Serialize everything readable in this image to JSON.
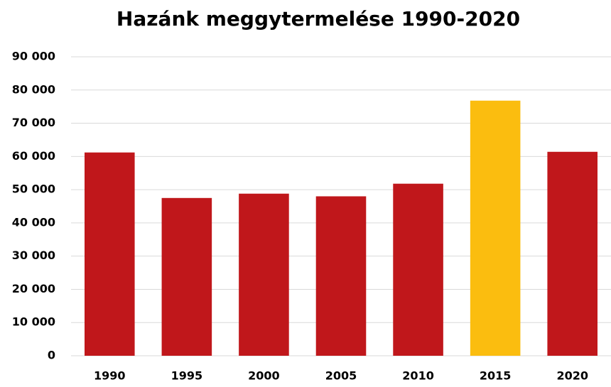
{
  "chart_data": {
    "type": "bar",
    "title": "Hazánk meggytermelése 1990-2020",
    "categories": [
      "1990",
      "1995",
      "2000",
      "2005",
      "2010",
      "2015",
      "2020"
    ],
    "values": [
      61200,
      47500,
      48800,
      48000,
      51800,
      76800,
      61400
    ],
    "colors": [
      "#c0171b",
      "#c0171b",
      "#c0171b",
      "#c0171b",
      "#c0171b",
      "#fbbd0f",
      "#c0171b"
    ],
    "ylim": [
      0,
      90000
    ],
    "yticks": [
      0,
      {
        "value": 10000,
        "label": "10 000"
      },
      {
        "value": 20000,
        "label": "20 000"
      },
      {
        "value": 30000,
        "label": "30 000"
      },
      {
        "value": 40000,
        "label": "40 000"
      },
      {
        "value": 50000,
        "label": "50 000"
      },
      {
        "value": 60000,
        "label": "60 000"
      },
      {
        "value": 70000,
        "label": "70 000"
      },
      {
        "value": 80000,
        "label": "80 000"
      },
      {
        "value": 90000,
        "label": "90 000"
      }
    ],
    "grid": true
  }
}
